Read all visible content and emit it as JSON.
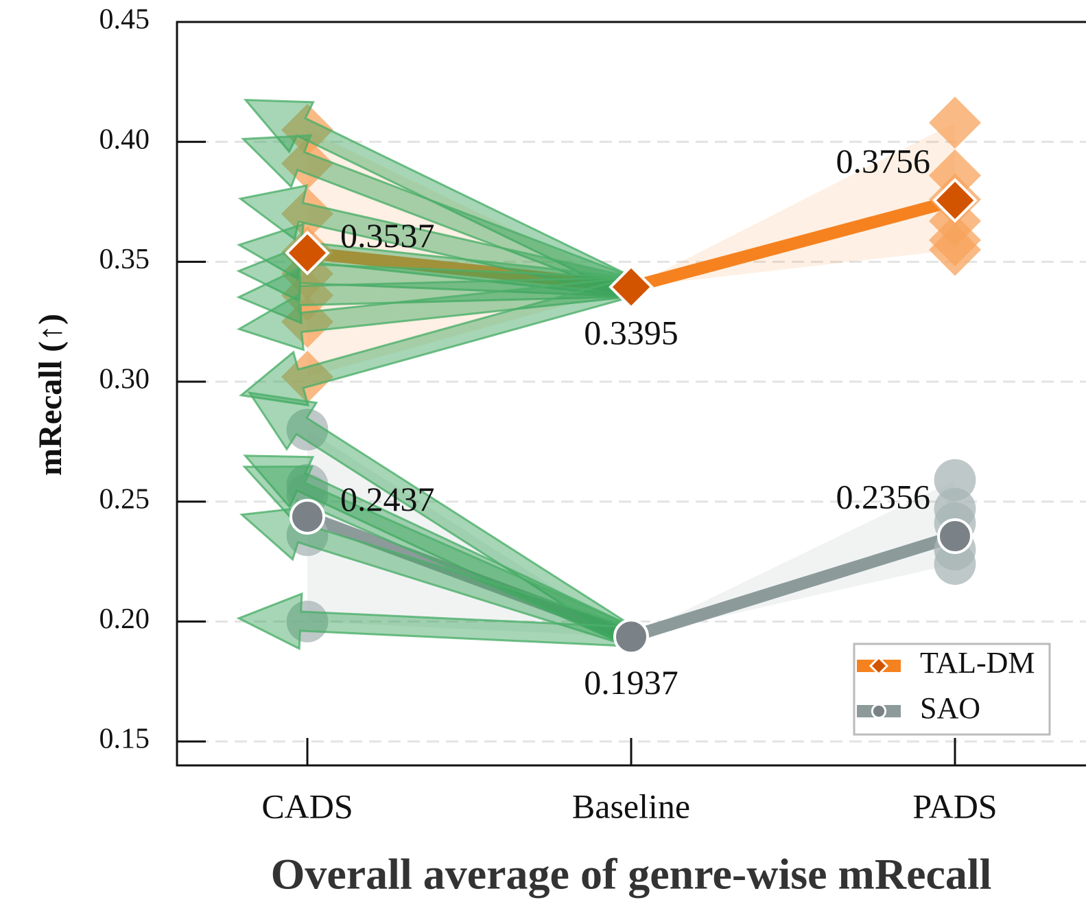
{
  "chart_data": {
    "type": "line",
    "xlabel": "Overall average of genre-wise mRecall",
    "ylabel": "mRecall (↑)",
    "categories": [
      "CADS",
      "Baseline",
      "PADS"
    ],
    "ylim": [
      0.14,
      0.45
    ],
    "yticks": [
      0.15,
      {
        "value": 0.2,
        "label": "0.20"
      },
      0.25,
      {
        "value": 0.3,
        "label": "0.30"
      },
      0.35,
      {
        "value": 0.4,
        "label": "0.40"
      },
      0.45
    ],
    "grid": true,
    "legend": "lower right",
    "series": [
      {
        "name": "TAL-DM",
        "color": "#f5821f",
        "marker": "diamond",
        "marker_color": "#d35400",
        "point_color": "#f7a35c",
        "values": [
          0.3537,
          0.3395,
          0.3756
        ],
        "genre_values": [
          [
            0.405,
            0.391,
            0.37,
            0.354,
            0.345,
            0.336,
            0.325,
            0.302
          ],
          [],
          [
            0.408,
            0.386,
            0.376,
            0.367,
            0.359,
            0.355
          ]
        ]
      },
      {
        "name": "SAO",
        "color": "#8c9a9a",
        "marker": "circle",
        "marker_color": "#7a8288",
        "point_color": "#a8b5b5",
        "values": [
          0.2437,
          0.1937,
          0.2356
        ],
        "genre_values": [
          [
            0.28,
            0.257,
            0.253,
            0.236,
            0.2
          ],
          [],
          [
            0.259,
            0.247,
            0.241,
            0.23,
            0.224
          ]
        ]
      }
    ]
  }
}
